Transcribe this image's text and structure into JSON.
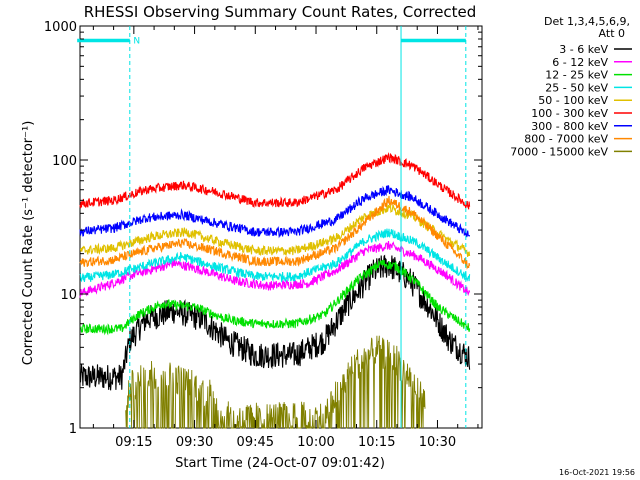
{
  "chart_data": {
    "type": "line",
    "title": "RHESSI Observing Summary Count Rates, Corrected",
    "xlabel": "Start Time (24-Oct-07 09:01:42)",
    "ylabel": "Corrected Count Rate (s⁻¹ detector⁻¹)",
    "y_scale": "log",
    "ylim": [
      1,
      1000
    ],
    "y_ticks": [
      "1",
      "10",
      "100",
      "1000"
    ],
    "x_range_minutes": [
      "09:01:42",
      "10:41:00"
    ],
    "x_ticks": [
      "09:15",
      "09:30",
      "09:45",
      "10:00",
      "10:15",
      "10:30"
    ],
    "grid": false,
    "legend_position": "top-right",
    "legend_header": [
      "Det 1,3,4,5,6,9,",
      "Att 0"
    ],
    "series": [
      {
        "name": "3 - 6 keV",
        "color": "#000000",
        "points": [
          [
            "09:01",
            2.4
          ],
          [
            "09:12",
            2.4
          ],
          [
            "09:14",
            4.5
          ],
          [
            "09:18",
            6.5
          ],
          [
            "09:25",
            7.5
          ],
          [
            "09:32",
            6.5
          ],
          [
            "09:38",
            4.5
          ],
          [
            "09:45",
            3.5
          ],
          [
            "09:55",
            3.5
          ],
          [
            "10:02",
            4.5
          ],
          [
            "10:08",
            8.5
          ],
          [
            "10:14",
            14.5
          ],
          [
            "10:18",
            16.5
          ],
          [
            "10:23",
            13
          ],
          [
            "10:28",
            8
          ],
          [
            "10:33",
            4.5
          ],
          [
            "10:38",
            3.3
          ]
        ]
      },
      {
        "name": "6 - 12 keV",
        "color": "#ff00ff",
        "points": [
          [
            "09:01",
            10
          ],
          [
            "09:08",
            11.5
          ],
          [
            "09:15",
            14
          ],
          [
            "09:25",
            17
          ],
          [
            "09:32",
            15
          ],
          [
            "09:40",
            12.5
          ],
          [
            "09:48",
            11.5
          ],
          [
            "09:58",
            12
          ],
          [
            "10:05",
            15
          ],
          [
            "10:12",
            21
          ],
          [
            "10:18",
            23
          ],
          [
            "10:25",
            19
          ],
          [
            "10:32",
            14
          ],
          [
            "10:38",
            10
          ]
        ]
      },
      {
        "name": "12 - 25 keV",
        "color": "#00e000",
        "points": [
          [
            "09:01",
            5.5
          ],
          [
            "09:12",
            5.5
          ],
          [
            "09:16",
            7
          ],
          [
            "09:22",
            8.5
          ],
          [
            "09:30",
            8
          ],
          [
            "09:38",
            6.5
          ],
          [
            "09:45",
            6
          ],
          [
            "09:55",
            6
          ],
          [
            "10:02",
            7
          ],
          [
            "10:10",
            12.5
          ],
          [
            "10:16",
            17
          ],
          [
            "10:20",
            16
          ],
          [
            "10:25",
            12
          ],
          [
            "10:30",
            8
          ],
          [
            "10:38",
            5.5
          ]
        ]
      },
      {
        "name": "25 - 50 keV",
        "color": "#00e5e5",
        "points": [
          [
            "09:01",
            13
          ],
          [
            "09:10",
            14
          ],
          [
            "09:20",
            17
          ],
          [
            "09:27",
            19
          ],
          [
            "09:35",
            16
          ],
          [
            "09:45",
            13.5
          ],
          [
            "09:55",
            13.5
          ],
          [
            "10:05",
            17
          ],
          [
            "10:12",
            25
          ],
          [
            "10:18",
            29
          ],
          [
            "10:25",
            24
          ],
          [
            "10:32",
            17
          ],
          [
            "10:38",
            13
          ]
        ]
      },
      {
        "name": "50 - 100 keV",
        "color": "#e0c000",
        "points": [
          [
            "09:01",
            21
          ],
          [
            "09:10",
            22
          ],
          [
            "09:20",
            27
          ],
          [
            "09:28",
            29
          ],
          [
            "09:35",
            25
          ],
          [
            "09:45",
            21
          ],
          [
            "09:55",
            21
          ],
          [
            "10:05",
            26
          ],
          [
            "10:12",
            38
          ],
          [
            "10:18",
            44
          ],
          [
            "10:24",
            38
          ],
          [
            "10:32",
            26
          ],
          [
            "10:38",
            20
          ]
        ]
      },
      {
        "name": "100 - 300 keV",
        "color": "#ff0000",
        "points": [
          [
            "09:01",
            47
          ],
          [
            "09:10",
            50
          ],
          [
            "09:18",
            60
          ],
          [
            "09:27",
            65
          ],
          [
            "09:35",
            58
          ],
          [
            "09:45",
            48
          ],
          [
            "09:55",
            48
          ],
          [
            "10:05",
            60
          ],
          [
            "10:12",
            88
          ],
          [
            "10:18",
            105
          ],
          [
            "10:24",
            90
          ],
          [
            "10:32",
            60
          ],
          [
            "10:38",
            45
          ]
        ]
      },
      {
        "name": "300 - 800 keV",
        "color": "#0000ff",
        "points": [
          [
            "09:01",
            29
          ],
          [
            "09:10",
            31
          ],
          [
            "09:18",
            37
          ],
          [
            "09:27",
            39
          ],
          [
            "09:35",
            34
          ],
          [
            "09:45",
            29
          ],
          [
            "09:55",
            29
          ],
          [
            "10:05",
            36
          ],
          [
            "10:12",
            52
          ],
          [
            "10:18",
            60
          ],
          [
            "10:24",
            52
          ],
          [
            "10:32",
            36
          ],
          [
            "10:38",
            27
          ]
        ]
      },
      {
        "name": "800 - 7000 keV",
        "color": "#ff8800",
        "points": [
          [
            "09:01",
            17
          ],
          [
            "09:10",
            18
          ],
          [
            "09:20",
            22
          ],
          [
            "09:27",
            24
          ],
          [
            "09:35",
            21
          ],
          [
            "09:45",
            17.5
          ],
          [
            "09:55",
            17.5
          ],
          [
            "10:05",
            22
          ],
          [
            "10:12",
            34
          ],
          [
            "10:18",
            50
          ],
          [
            "10:24",
            40
          ],
          [
            "10:32",
            24
          ],
          [
            "10:38",
            16
          ]
        ]
      },
      {
        "name": "7000 - 15000 keV",
        "color": "#808000",
        "points": [
          [
            "09:13",
            1.2
          ],
          [
            "09:14",
            2
          ],
          [
            "09:20",
            2.6
          ],
          [
            "09:28",
            2.2
          ],
          [
            "09:34",
            1.8
          ],
          [
            "09:37",
            1.2
          ],
          [
            "10:02",
            1.2
          ],
          [
            "10:05",
            1.8
          ],
          [
            "10:10",
            3
          ],
          [
            "10:15",
            3.8
          ],
          [
            "10:20",
            3.2
          ],
          [
            "10:24",
            2.2
          ],
          [
            "10:27",
            1.5
          ]
        ]
      }
    ],
    "annotations": [
      {
        "type": "attenuator-bar",
        "color": "#00e5e5",
        "label": "N",
        "ranges": [
          [
            "09:01",
            "09:14"
          ],
          [
            "10:21",
            "10:37"
          ]
        ],
        "value": 780
      },
      {
        "type": "vline",
        "color": "#00e5e5",
        "style": "dashed",
        "x": "09:14"
      },
      {
        "type": "vline",
        "color": "#00e5e5",
        "style": "solid",
        "x": "10:21"
      },
      {
        "type": "vline",
        "color": "#00e5e5",
        "style": "dashed",
        "x": "10:37"
      }
    ]
  },
  "timestamp": "16-Oct-2021 19:56"
}
